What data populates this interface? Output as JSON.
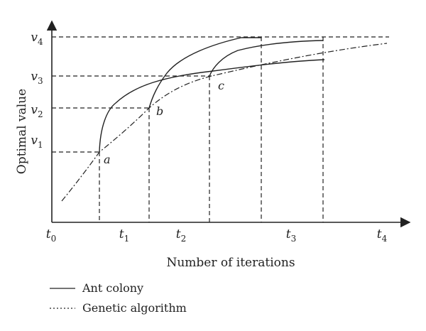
{
  "chart_data": {
    "type": "line",
    "title": "",
    "xlabel": "Number of iterations",
    "ylabel": "Optimal value",
    "x_ticks": [
      {
        "main": "t",
        "sub": "0"
      },
      {
        "main": "t",
        "sub": "1"
      },
      {
        "main": "t",
        "sub": "2"
      },
      {
        "main": "t",
        "sub": "3"
      },
      {
        "main": "t",
        "sub": "4"
      }
    ],
    "y_ticks": [
      {
        "main": "v",
        "sub": "1"
      },
      {
        "main": "v",
        "sub": "2"
      },
      {
        "main": "v",
        "sub": "3"
      },
      {
        "main": "v",
        "sub": "4"
      }
    ],
    "point_labels": [
      "a",
      "b",
      "c"
    ],
    "legend": {
      "position": "bottom-left",
      "entries": [
        {
          "label": "Ant colony",
          "style": "solid"
        },
        {
          "label": "Genetic algorithm",
          "style": "dash-dot"
        }
      ]
    },
    "grid": false
  }
}
